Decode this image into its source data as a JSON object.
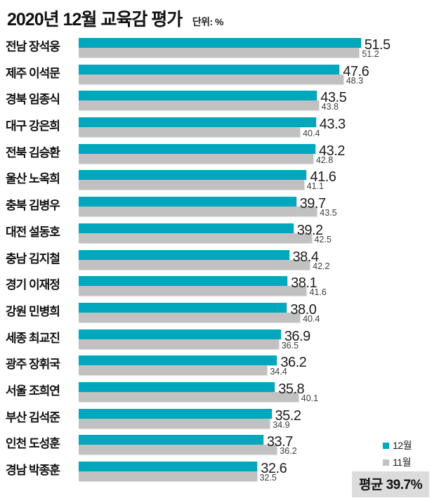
{
  "title": "2020년 12월 교육감 평가",
  "unit_label": "단위: %",
  "average_label": "평균 39.7%",
  "colors": {
    "december_bar": "#00a7bd",
    "november_bar": "#c1c1c1",
    "badge_bg": "#dcdcdc",
    "text": "#111111"
  },
  "chart_data": {
    "type": "bar",
    "orientation": "horizontal",
    "title": "2020년 12월 교육감 평가",
    "unit": "%",
    "xlim": [
      0,
      55
    ],
    "grid": false,
    "legend_position": "bottom-right",
    "categories": [
      "전남 장석웅",
      "제주 이석문",
      "경북 임종식",
      "대구 강은희",
      "전북 김승환",
      "울산 노옥희",
      "충북 김병우",
      "대전 설동호",
      "충남 김지철",
      "경기 이재정",
      "강원 민병희",
      "세종 최교진",
      "광주 장휘국",
      "서울 조희연",
      "부산 김석준",
      "인천 도성훈",
      "경남 박종훈"
    ],
    "series": [
      {
        "name": "12월",
        "color": "#00a7bd",
        "values": [
          51.5,
          47.6,
          43.5,
          43.3,
          43.2,
          41.6,
          39.7,
          39.2,
          38.4,
          38.1,
          38.0,
          36.9,
          36.2,
          35.8,
          35.2,
          33.7,
          32.6
        ],
        "value_labels": [
          "51.5",
          "47.6",
          "43.5",
          "43.3",
          "43.2",
          "41.6",
          "39.7",
          "39.2",
          "38.4",
          "38.1",
          "38.0",
          "36.9",
          "36.2",
          "35.8",
          "35.2",
          "33.7",
          "32.6"
        ]
      },
      {
        "name": "11월",
        "color": "#c1c1c1",
        "values": [
          51.2,
          48.3,
          43.8,
          40.4,
          42.8,
          41.1,
          43.5,
          42.5,
          42.2,
          41.6,
          40.4,
          36.5,
          34.4,
          40.1,
          34.9,
          36.2,
          32.5
        ],
        "value_labels": [
          "51.2",
          "48.3",
          "43.8",
          "40.4",
          "42.8",
          "41.1",
          "43.5",
          "42.5",
          "42.2",
          "41.6",
          "40.4",
          "36.5",
          "34.4",
          "40.1",
          "34.9",
          "36.2",
          "32.5"
        ]
      }
    ],
    "annotations": [
      "평균 39.7%"
    ]
  }
}
